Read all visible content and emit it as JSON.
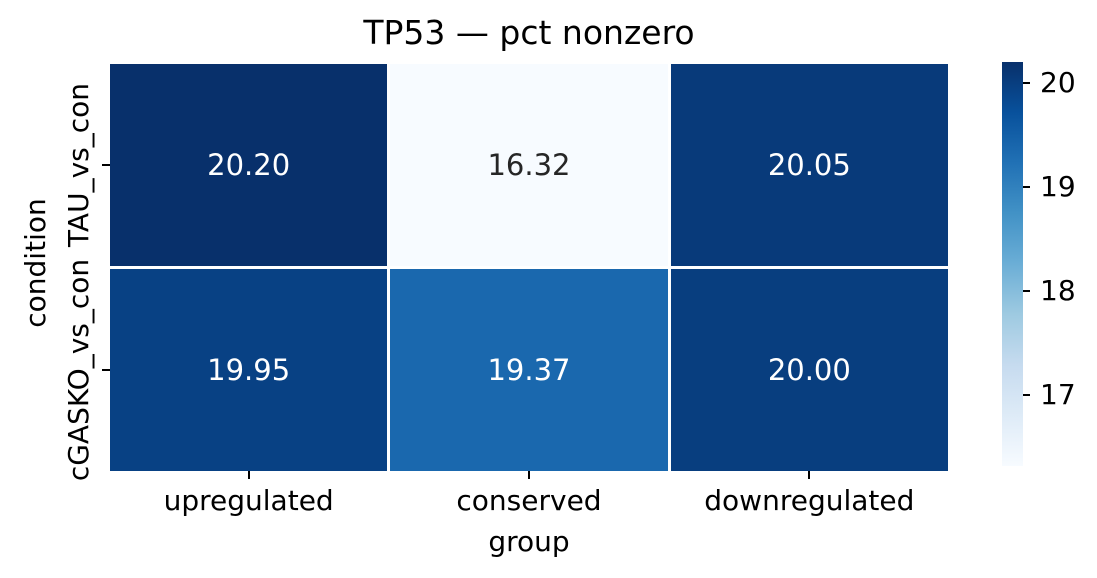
{
  "chart_data": {
    "type": "heatmap",
    "title": "TP53 — pct nonzero",
    "xlabel": "group",
    "ylabel": "condition",
    "columns": [
      "upregulated",
      "conserved",
      "downregulated"
    ],
    "rows": [
      "TAU_vs_con",
      "cGASKO_vs_con"
    ],
    "values": [
      [
        20.2,
        16.32,
        20.05
      ],
      [
        19.95,
        19.37,
        20.0
      ]
    ],
    "cell_labels": [
      [
        "20.20",
        "16.32",
        "20.05"
      ],
      [
        "19.95",
        "19.37",
        "20.00"
      ]
    ],
    "colormap": "Blues",
    "vmin": 16.32,
    "vmax": 20.2,
    "colorbar_ticks": [
      20,
      19,
      18,
      17
    ],
    "colorbar_position": "right",
    "grid": false,
    "gridline_color": "#ffffff",
    "background": "#ffffff",
    "annotation_text_colors": {
      "light_cell": "#262626",
      "dark_cell": "#ffffff"
    },
    "colormap_stops": [
      "#f7fbff",
      "#deebf7",
      "#c6dbef",
      "#9ecae1",
      "#6baed6",
      "#4292c6",
      "#2171b5",
      "#08519c",
      "#08306b"
    ]
  }
}
